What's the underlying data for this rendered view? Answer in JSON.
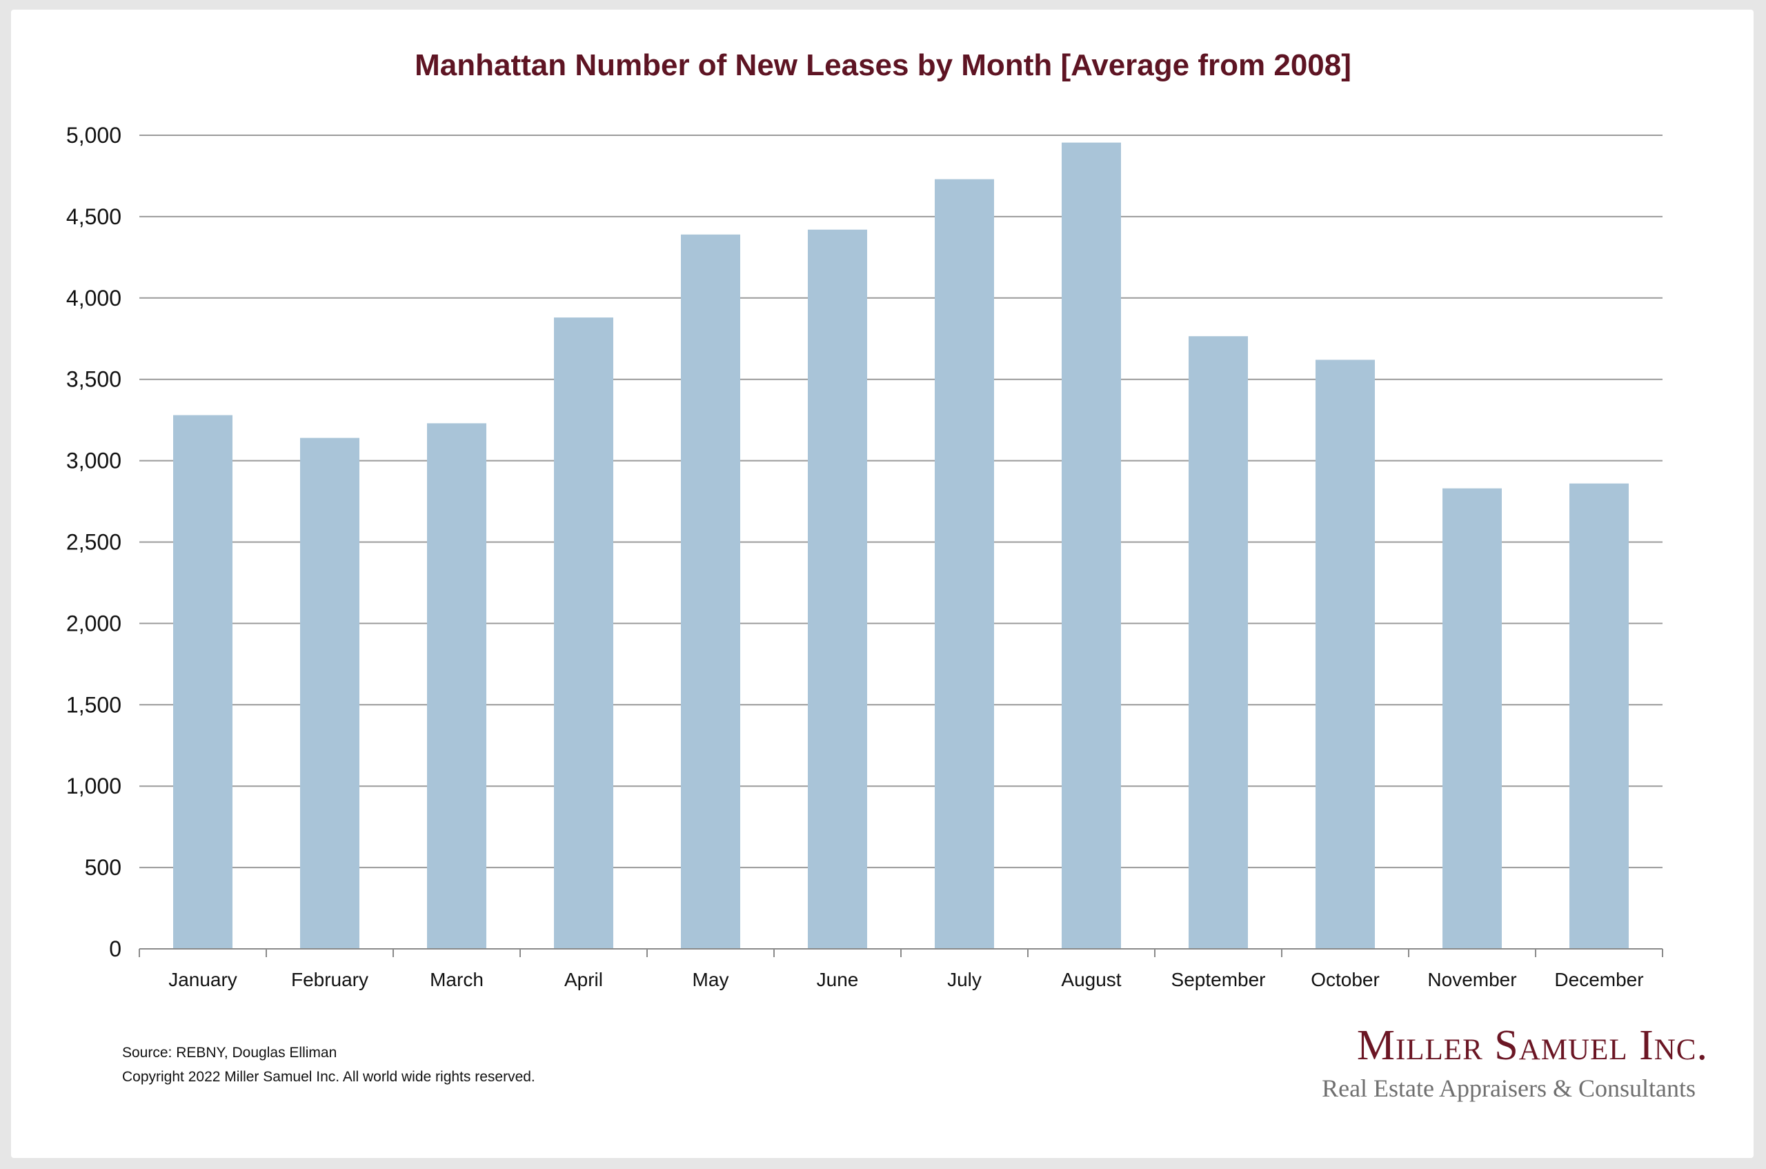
{
  "chart_data": {
    "type": "bar",
    "title": "Manhattan Number of New Leases by Month [Average from 2008]",
    "xlabel": "",
    "ylabel": "",
    "categories": [
      "January",
      "February",
      "March",
      "April",
      "May",
      "June",
      "July",
      "August",
      "September",
      "October",
      "November",
      "December"
    ],
    "values": [
      3280,
      3140,
      3230,
      3880,
      4390,
      4420,
      4730,
      4955,
      3765,
      3620,
      2830,
      2860
    ],
    "ylim": [
      0,
      5000
    ],
    "yticks": [
      "0",
      "500",
      "1,000",
      "1,500",
      "2,000",
      "2,500",
      "3,000",
      "3,500",
      "4,000",
      "4,500",
      "5,000"
    ],
    "grid": true,
    "bar_color": "#a9c4d8",
    "grid_color": "#9a9a9a",
    "title_color": "#5e1423"
  },
  "footer": {
    "source": "Source: REBNY, Douglas Elliman",
    "copyright": "Copyright 2022 Miller Samuel Inc.  All world wide rights reserved."
  },
  "logo": {
    "name": "Miller Samuel Inc.",
    "tagline": "Real Estate Appraisers & Consultants"
  }
}
